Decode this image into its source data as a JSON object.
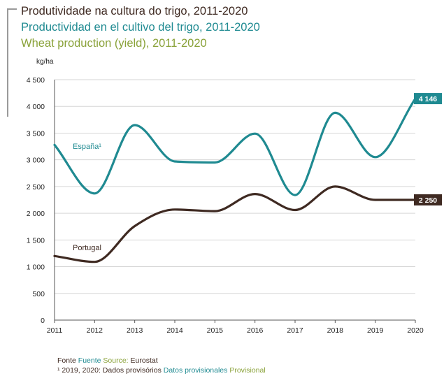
{
  "titles": {
    "pt": "Produtividade na cultura do trigo, 2011-2020",
    "es": "Productividad en el cultivo del trigo, 2011-2020",
    "en": "Wheat production (yield), 2011-2020"
  },
  "chart_data": {
    "type": "line",
    "ylabel": "kg/ha",
    "ylim": [
      0,
      4500
    ],
    "yticks": [
      0,
      500,
      1000,
      1500,
      2000,
      2500,
      3000,
      3500,
      4000,
      4500
    ],
    "ytick_labels": [
      "0",
      "500",
      "1 000",
      "1 500",
      "2 000",
      "2 500",
      "3 000",
      "3 500",
      "4 000",
      "4 500"
    ],
    "x": [
      "2011",
      "2012",
      "2013",
      "2014",
      "2015",
      "2016",
      "2017",
      "2018",
      "2019",
      "2020"
    ],
    "grid": true,
    "series": [
      {
        "name": "España¹",
        "color": "#1f8a91",
        "values": [
          3280,
          2370,
          3650,
          2970,
          2950,
          3490,
          2340,
          3880,
          3050,
          4146
        ],
        "end_label": "4 146"
      },
      {
        "name": "Portugal",
        "color": "#3f2a22",
        "values": [
          1200,
          1090,
          1760,
          2070,
          2040,
          2360,
          2060,
          2500,
          2250,
          2250
        ],
        "end_label": "2 250"
      }
    ]
  },
  "footer": {
    "source_pt": "Fonte",
    "source_es": "Fuente",
    "source_en": "Source:",
    "source_value": "Eurostat",
    "note_prefix": "¹ 2019, 2020: Dados provisórios",
    "note_es": "Datos provisionales",
    "note_en": "Provisional"
  }
}
